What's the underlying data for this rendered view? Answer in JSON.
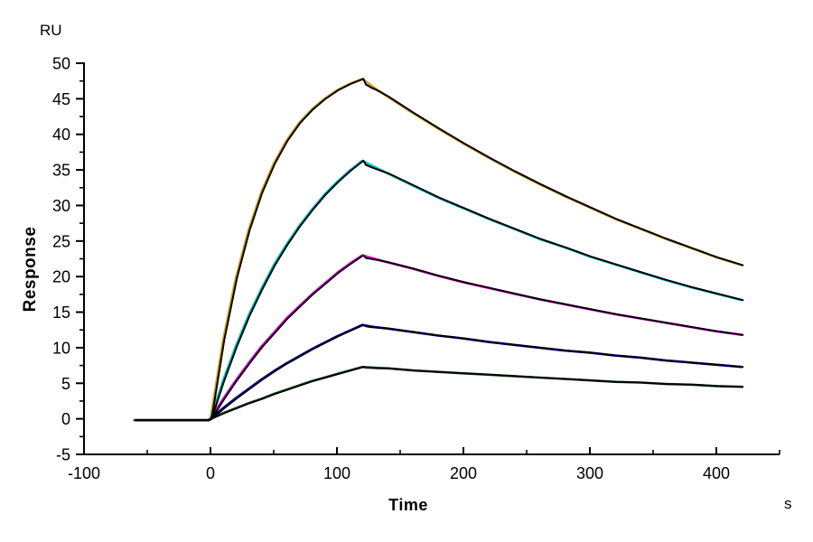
{
  "chart_data": {
    "type": "line",
    "title": "",
    "description": "SPR sensorgram: five concentration curves with black kinetic fit overlays",
    "xlabel": "Time",
    "x_unit": "s",
    "ylabel": "Response",
    "y_unit": "RU",
    "xlim": [
      -100,
      450
    ],
    "ylim": [
      -5,
      50
    ],
    "grid": false,
    "legend": "none",
    "axis_color": "#000000",
    "fit_color": "#000000",
    "x_ticks": [
      -100,
      0,
      100,
      200,
      300,
      400
    ],
    "x_minor_ticks": [
      -50,
      50,
      150,
      250,
      350,
      450
    ],
    "y_ticks": [
      50,
      45,
      40,
      35,
      30,
      25,
      20,
      15,
      10,
      5,
      0,
      -5
    ],
    "y_minor_ticks": [
      47.5,
      42.5,
      37.5,
      32.5,
      27.5,
      22.5,
      17.5,
      12.5,
      7.5,
      2.5,
      -2.5
    ],
    "series": [
      {
        "name": "curve-1-gold",
        "color": "#D6A41B",
        "peak_ru": 47.8,
        "end_ru": 21.6,
        "points": [
          [
            -60,
            -0.2
          ],
          [
            -30,
            -0.2
          ],
          [
            -2,
            -0.2
          ],
          [
            0,
            0
          ],
          [
            10,
            11.1
          ],
          [
            20,
            19.8
          ],
          [
            30,
            26.5
          ],
          [
            40,
            31.8
          ],
          [
            50,
            35.9
          ],
          [
            60,
            39.1
          ],
          [
            70,
            41.6
          ],
          [
            80,
            43.5
          ],
          [
            90,
            45.0
          ],
          [
            100,
            46.2
          ],
          [
            110,
            47.1
          ],
          [
            120,
            47.8
          ],
          [
            130,
            46.5
          ],
          [
            140,
            45.3
          ],
          [
            160,
            43.0
          ],
          [
            180,
            40.8
          ],
          [
            200,
            38.7
          ],
          [
            220,
            36.7
          ],
          [
            240,
            34.8
          ],
          [
            260,
            33.0
          ],
          [
            280,
            31.3
          ],
          [
            300,
            29.7
          ],
          [
            320,
            28.1
          ],
          [
            340,
            26.7
          ],
          [
            360,
            25.3
          ],
          [
            380,
            24.0
          ],
          [
            400,
            22.7
          ],
          [
            420,
            21.6
          ]
        ],
        "fit_notch": [
          [
            122,
            47.0
          ],
          [
            126,
            46.6
          ],
          [
            132,
            46.1
          ]
        ]
      },
      {
        "name": "curve-2-cyan",
        "color": "#00C5CD",
        "peak_ru": 36.3,
        "end_ru": 16.7,
        "points": [
          [
            -60,
            -0.2
          ],
          [
            -30,
            -0.2
          ],
          [
            -2,
            -0.2
          ],
          [
            0,
            0
          ],
          [
            10,
            5.4
          ],
          [
            20,
            10.2
          ],
          [
            30,
            14.5
          ],
          [
            40,
            18.2
          ],
          [
            50,
            21.6
          ],
          [
            60,
            24.5
          ],
          [
            70,
            27.1
          ],
          [
            80,
            29.4
          ],
          [
            90,
            31.5
          ],
          [
            100,
            33.3
          ],
          [
            110,
            34.9
          ],
          [
            120,
            36.3
          ],
          [
            130,
            35.4
          ],
          [
            140,
            34.5
          ],
          [
            160,
            32.8
          ],
          [
            180,
            31.1
          ],
          [
            200,
            29.6
          ],
          [
            220,
            28.1
          ],
          [
            240,
            26.7
          ],
          [
            260,
            25.3
          ],
          [
            280,
            24.1
          ],
          [
            300,
            22.8
          ],
          [
            320,
            21.7
          ],
          [
            340,
            20.6
          ],
          [
            360,
            19.5
          ],
          [
            380,
            18.5
          ],
          [
            400,
            17.6
          ],
          [
            420,
            16.7
          ]
        ],
        "fit_notch": [
          [
            122,
            35.7
          ],
          [
            126,
            35.4
          ],
          [
            132,
            35.0
          ]
        ]
      },
      {
        "name": "curve-3-magenta",
        "color": "#EE00EE",
        "peak_ru": 23.0,
        "end_ru": 11.8,
        "points": [
          [
            -60,
            -0.2
          ],
          [
            -30,
            -0.2
          ],
          [
            -2,
            -0.2
          ],
          [
            0,
            0
          ],
          [
            10,
            2.8
          ],
          [
            20,
            5.4
          ],
          [
            30,
            7.8
          ],
          [
            40,
            10.1
          ],
          [
            50,
            12.1
          ],
          [
            60,
            14.1
          ],
          [
            70,
            15.8
          ],
          [
            80,
            17.5
          ],
          [
            90,
            19.0
          ],
          [
            100,
            20.5
          ],
          [
            110,
            21.8
          ],
          [
            120,
            23.0
          ],
          [
            130,
            22.5
          ],
          [
            140,
            22.0
          ],
          [
            160,
            21.1
          ],
          [
            180,
            20.1
          ],
          [
            200,
            19.2
          ],
          [
            220,
            18.4
          ],
          [
            240,
            17.6
          ],
          [
            260,
            16.8
          ],
          [
            280,
            16.1
          ],
          [
            300,
            15.4
          ],
          [
            320,
            14.7
          ],
          [
            340,
            14.1
          ],
          [
            360,
            13.5
          ],
          [
            380,
            12.9
          ],
          [
            400,
            12.3
          ],
          [
            420,
            11.8
          ]
        ],
        "fit_notch": [
          [
            122,
            22.6
          ],
          [
            126,
            22.5
          ],
          [
            132,
            22.3
          ]
        ]
      },
      {
        "name": "curve-4-blue",
        "color": "#0000CD",
        "peak_ru": 13.2,
        "end_ru": 7.3,
        "points": [
          [
            -60,
            -0.2
          ],
          [
            -30,
            -0.2
          ],
          [
            -2,
            -0.2
          ],
          [
            0,
            0
          ],
          [
            10,
            1.5
          ],
          [
            20,
            2.9
          ],
          [
            30,
            4.2
          ],
          [
            40,
            5.5
          ],
          [
            50,
            6.7
          ],
          [
            60,
            7.8
          ],
          [
            70,
            8.8
          ],
          [
            80,
            9.8
          ],
          [
            90,
            10.7
          ],
          [
            100,
            11.6
          ],
          [
            110,
            12.4
          ],
          [
            120,
            13.2
          ],
          [
            130,
            12.9
          ],
          [
            140,
            12.7
          ],
          [
            160,
            12.2
          ],
          [
            180,
            11.7
          ],
          [
            200,
            11.3
          ],
          [
            220,
            10.8
          ],
          [
            240,
            10.4
          ],
          [
            260,
            10.0
          ],
          [
            280,
            9.6
          ],
          [
            300,
            9.3
          ],
          [
            320,
            8.9
          ],
          [
            340,
            8.6
          ],
          [
            360,
            8.2
          ],
          [
            380,
            7.9
          ],
          [
            400,
            7.6
          ],
          [
            420,
            7.3
          ]
        ],
        "fit_notch": [
          [
            122,
            13.0
          ],
          [
            126,
            12.9
          ],
          [
            132,
            12.8
          ]
        ]
      },
      {
        "name": "curve-5-green",
        "color": "#1E6B1E",
        "peak_ru": 7.3,
        "end_ru": 4.5,
        "points": [
          [
            -60,
            -0.2
          ],
          [
            -30,
            -0.2
          ],
          [
            -2,
            -0.2
          ],
          [
            0,
            0
          ],
          [
            10,
            0.8
          ],
          [
            20,
            1.5
          ],
          [
            30,
            2.2
          ],
          [
            40,
            2.8
          ],
          [
            50,
            3.5
          ],
          [
            60,
            4.1
          ],
          [
            70,
            4.7
          ],
          [
            80,
            5.3
          ],
          [
            90,
            5.8
          ],
          [
            100,
            6.3
          ],
          [
            110,
            6.8
          ],
          [
            120,
            7.3
          ],
          [
            130,
            7.2
          ],
          [
            140,
            7.1
          ],
          [
            160,
            6.8
          ],
          [
            180,
            6.6
          ],
          [
            200,
            6.4
          ],
          [
            220,
            6.2
          ],
          [
            240,
            6.0
          ],
          [
            260,
            5.8
          ],
          [
            280,
            5.6
          ],
          [
            300,
            5.4
          ],
          [
            320,
            5.2
          ],
          [
            340,
            5.1
          ],
          [
            360,
            4.9
          ],
          [
            380,
            4.8
          ],
          [
            400,
            4.6
          ],
          [
            420,
            4.5
          ]
        ],
        "fit_notch": [
          [
            122,
            7.2
          ],
          [
            126,
            7.15
          ],
          [
            132,
            7.1
          ]
        ]
      }
    ]
  }
}
